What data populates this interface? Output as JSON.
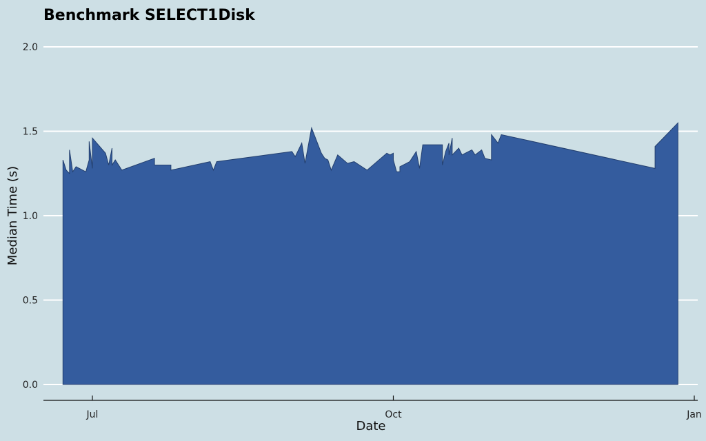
{
  "chart_data": {
    "type": "area",
    "title": "Benchmark SELECT1Disk",
    "xlabel": "Date",
    "ylabel": "Median Time (s)",
    "ylim": [
      0,
      2.0
    ],
    "xlim": [
      "2016-06-21",
      "2017-01-01"
    ],
    "y_ticks": [
      "0.0",
      "0.5",
      "1.0",
      "1.5",
      "2.0"
    ],
    "x_ticks": [
      {
        "date": "2016-07-01",
        "label": "Jul"
      },
      {
        "date": "2016-10-01",
        "label": "Oct"
      },
      {
        "date": "2017-01-01",
        "label": "Jan"
      }
    ],
    "grid": true,
    "legend": "none",
    "colors": {
      "fill": "#345c9e",
      "stroke": "#233f6e",
      "background": "#cddfe5",
      "grid": "#ffffff"
    },
    "points": [
      [
        "2016-06-22",
        1.33
      ],
      [
        "2016-06-23",
        1.27
      ],
      [
        "2016-06-24",
        1.25
      ],
      [
        "2016-06-24",
        1.39
      ],
      [
        "2016-06-25",
        1.26
      ],
      [
        "2016-06-26",
        1.29
      ],
      [
        "2016-06-29",
        1.26
      ],
      [
        "2016-06-30",
        1.33
      ],
      [
        "2016-06-30",
        1.44
      ],
      [
        "2016-07-01",
        1.28
      ],
      [
        "2016-07-01",
        1.46
      ],
      [
        "2016-07-05",
        1.37
      ],
      [
        "2016-07-06",
        1.3
      ],
      [
        "2016-07-07",
        1.4
      ],
      [
        "2016-07-07",
        1.3
      ],
      [
        "2016-07-08",
        1.33
      ],
      [
        "2016-07-10",
        1.27
      ],
      [
        "2016-07-20",
        1.34
      ],
      [
        "2016-07-20",
        1.3
      ],
      [
        "2016-07-25",
        1.3
      ],
      [
        "2016-07-25",
        1.27
      ],
      [
        "2016-08-06",
        1.32
      ],
      [
        "2016-08-07",
        1.27
      ],
      [
        "2016-08-08",
        1.32
      ],
      [
        "2016-08-31",
        1.38
      ],
      [
        "2016-09-01",
        1.35
      ],
      [
        "2016-09-03",
        1.43
      ],
      [
        "2016-09-04",
        1.31
      ],
      [
        "2016-09-06",
        1.52
      ],
      [
        "2016-09-09",
        1.37
      ],
      [
        "2016-09-10",
        1.34
      ],
      [
        "2016-09-11",
        1.33
      ],
      [
        "2016-09-12",
        1.27
      ],
      [
        "2016-09-14",
        1.36
      ],
      [
        "2016-09-17",
        1.31
      ],
      [
        "2016-09-19",
        1.32
      ],
      [
        "2016-09-23",
        1.27
      ],
      [
        "2016-09-29",
        1.37
      ],
      [
        "2016-09-30",
        1.36
      ],
      [
        "2016-10-01",
        1.37
      ],
      [
        "2016-10-01",
        1.33
      ],
      [
        "2016-10-02",
        1.26
      ],
      [
        "2016-10-03",
        1.26
      ],
      [
        "2016-10-03",
        1.29
      ],
      [
        "2016-10-05",
        1.31
      ],
      [
        "2016-10-06",
        1.32
      ],
      [
        "2016-10-08",
        1.38
      ],
      [
        "2016-10-09",
        1.28
      ],
      [
        "2016-10-10",
        1.42
      ],
      [
        "2016-10-16",
        1.42
      ],
      [
        "2016-10-16",
        1.3
      ],
      [
        "2016-10-17",
        1.38
      ],
      [
        "2016-10-18",
        1.43
      ],
      [
        "2016-10-18",
        1.36
      ],
      [
        "2016-10-19",
        1.46
      ],
      [
        "2016-10-19",
        1.36
      ],
      [
        "2016-10-21",
        1.4
      ],
      [
        "2016-10-22",
        1.36
      ],
      [
        "2016-10-23",
        1.37
      ],
      [
        "2016-10-25",
        1.39
      ],
      [
        "2016-10-26",
        1.36
      ],
      [
        "2016-10-28",
        1.39
      ],
      [
        "2016-10-29",
        1.34
      ],
      [
        "2016-10-31",
        1.33
      ],
      [
        "2016-10-31",
        1.48
      ],
      [
        "2016-11-02",
        1.43
      ],
      [
        "2016-11-03",
        1.48
      ],
      [
        "2016-12-20",
        1.28
      ],
      [
        "2016-12-20",
        1.41
      ],
      [
        "2016-12-27",
        1.55
      ]
    ]
  }
}
